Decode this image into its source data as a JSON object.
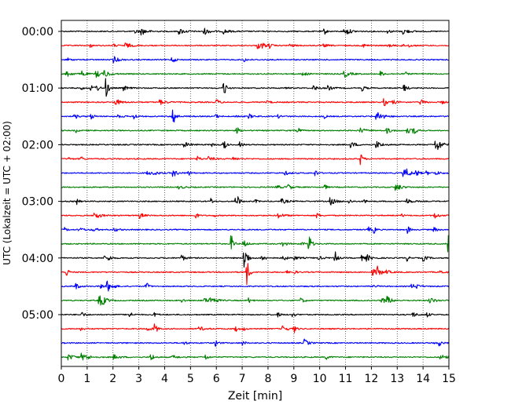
{
  "chart_data": {
    "type": "line",
    "title": "",
    "xlabel": "Zeit  [min]",
    "ylabel": "UTC (Lokalzeit = UTC + 02:00)",
    "xlim": [
      0,
      15
    ],
    "x_ticks": [
      "0",
      "1",
      "2",
      "3",
      "4",
      "5",
      "6",
      "7",
      "8",
      "9",
      "10",
      "11",
      "12",
      "13",
      "14",
      "15"
    ],
    "y_tick_labels": [
      "00:00",
      "01:00",
      "02:00",
      "03:00",
      "04:00",
      "05:00"
    ],
    "trace_interval_min": 15,
    "trace_count": 24,
    "trace_colors": [
      "#000000",
      "#ff0000",
      "#0000ff",
      "#008000"
    ],
    "grid": "vertical dotted",
    "events": [
      {
        "row": 4,
        "x": 1.75,
        "amp": 12
      },
      {
        "row": 4,
        "x": 6.3,
        "amp": 11
      },
      {
        "row": 6,
        "x": 4.35,
        "amp": 8
      },
      {
        "row": 8,
        "x": 6.3,
        "amp": 7
      },
      {
        "row": 8,
        "x": 14.5,
        "amp": 6
      },
      {
        "row": 9,
        "x": 11.6,
        "amp": 7
      },
      {
        "row": 14,
        "x": 13.4,
        "amp": 6
      },
      {
        "row": 15,
        "x": 6.6,
        "amp": 10
      },
      {
        "row": 15,
        "x": 9.6,
        "amp": 8
      },
      {
        "row": 15,
        "x": 15.0,
        "amp": 11
      },
      {
        "row": 16,
        "x": 10.6,
        "amp": 10
      },
      {
        "row": 16,
        "x": 7.1,
        "amp": 14
      },
      {
        "row": 17,
        "x": 7.2,
        "amp": 16
      },
      {
        "row": 17,
        "x": 0.2,
        "amp": 6
      },
      {
        "row": 18,
        "x": 1.8,
        "amp": 8
      },
      {
        "row": 18,
        "x": 3.3,
        "amp": 5
      },
      {
        "row": 21,
        "x": 3.65,
        "amp": 6
      },
      {
        "row": 22,
        "x": 6.0,
        "amp": 4
      },
      {
        "row": 23,
        "x": 3.5,
        "amp": 5
      }
    ]
  }
}
